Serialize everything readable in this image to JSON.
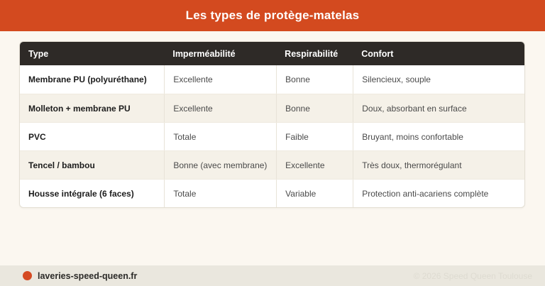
{
  "header": {
    "title": "Les types de protège-matelas"
  },
  "table": {
    "columns": [
      "Type",
      "Imperméabilité",
      "Respirabilité",
      "Confort"
    ],
    "rows": [
      [
        "Membrane PU (polyuréthane)",
        "Excellente",
        "Bonne",
        "Silencieux, souple"
      ],
      [
        "Molleton + membrane PU",
        "Excellente",
        "Bonne",
        "Doux, absorbant en surface"
      ],
      [
        "PVC",
        "Totale",
        "Faible",
        "Bruyant, moins confortable"
      ],
      [
        "Tencel / bambou",
        "Bonne (avec membrane)",
        "Excellente",
        "Très doux, thermorégulant"
      ],
      [
        "Housse intégrale (6 faces)",
        "Totale",
        "Variable",
        "Protection anti-acariens complète"
      ]
    ]
  },
  "footer": {
    "site": "laveries-speed-queen.fr",
    "copyright": "© 2026 Speed Queen Toulouse"
  },
  "colors": {
    "banner_orange": "#d34a1f",
    "table_header_dark": "#2e2a27",
    "row_alt_beige": "#f5f1e8",
    "page_cream": "#fbf7f0",
    "footer_band": "#eae7de",
    "footer_dot_orange": "#d54a22"
  }
}
